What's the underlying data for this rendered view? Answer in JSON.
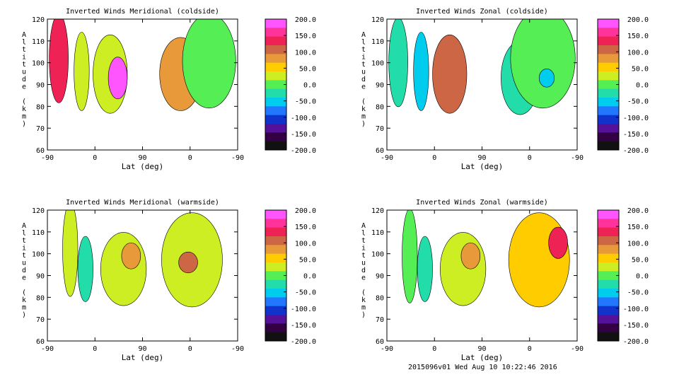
{
  "chart_data": [
    {
      "type": "heatmap",
      "title": "Inverted Winds Meridional (coldside)",
      "xlabel": "Lat (deg)",
      "ylabel": "Altitude (km)",
      "xticks": [
        "-90",
        "0",
        "90",
        "0",
        "-90"
      ],
      "yticks": [
        "60",
        "70",
        "80",
        "90",
        "100",
        "110",
        "120"
      ],
      "ylim": [
        60,
        120
      ],
      "colorbar_labels": [
        "200.0",
        "150.0",
        "100.0",
        "50.0",
        "0.0",
        "-50.0",
        "-100.0",
        "-150.0",
        "-200.0"
      ],
      "clim": [
        -200,
        200
      ]
    },
    {
      "type": "heatmap",
      "title": "Inverted Winds Zonal (coldside)",
      "xlabel": "Lat (deg)",
      "ylabel": "Altitude (km)",
      "xticks": [
        "-90",
        "0",
        "90",
        "0",
        "-90"
      ],
      "yticks": [
        "60",
        "70",
        "80",
        "90",
        "100",
        "110",
        "120"
      ],
      "ylim": [
        60,
        120
      ],
      "colorbar_labels": [
        "200.0",
        "150.0",
        "100.0",
        "50.0",
        "0.0",
        "-50.0",
        "-100.0",
        "-150.0",
        "-200.0"
      ],
      "clim": [
        -200,
        200
      ]
    },
    {
      "type": "heatmap",
      "title": "Inverted Winds Meridional (warmside)",
      "xlabel": "Lat (deg)",
      "ylabel": "Altitude (km)",
      "xticks": [
        "-90",
        "0",
        "90",
        "0",
        "-90"
      ],
      "yticks": [
        "60",
        "70",
        "80",
        "90",
        "100",
        "110",
        "120"
      ],
      "ylim": [
        60,
        120
      ],
      "colorbar_labels": [
        "200.0",
        "150.0",
        "100.0",
        "50.0",
        "0.0",
        "-50.0",
        "-100.0",
        "-150.0",
        "-200.0"
      ],
      "clim": [
        -200,
        200
      ]
    },
    {
      "type": "heatmap",
      "title": "Inverted Winds Zonal (warmside)",
      "xlabel": "Lat (deg)",
      "ylabel": "Altitude (km)",
      "xticks": [
        "-90",
        "0",
        "90",
        "0",
        "-90"
      ],
      "yticks": [
        "60",
        "70",
        "80",
        "90",
        "100",
        "110",
        "120"
      ],
      "ylim": [
        60,
        120
      ],
      "colorbar_labels": [
        "200.0",
        "150.0",
        "100.0",
        "50.0",
        "0.0",
        "-50.0",
        "-100.0",
        "-150.0",
        "-200.0"
      ],
      "clim": [
        -200,
        200
      ]
    }
  ],
  "colorbar_colors": [
    "#ff55ff",
    "#ff3399",
    "#ee2255",
    "#cc6644",
    "#e89a3a",
    "#ffcc00",
    "#ccee22",
    "#55ee55",
    "#22ddaa",
    "#00ccee",
    "#2277ff",
    "#1133cc",
    "#551199",
    "#330044",
    "#111111"
  ],
  "footer": "2015096v01 Wed Aug 10 10:22:46 2016"
}
